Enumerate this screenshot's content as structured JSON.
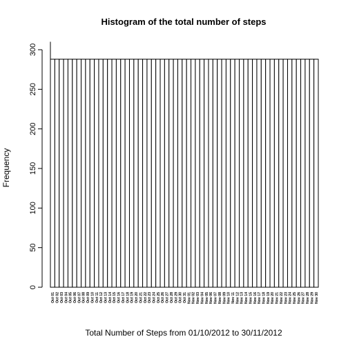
{
  "chart_data": {
    "type": "bar",
    "title": "Histogram of the total number of steps",
    "xlabel": "Total Number of Steps from 01/10/2012 to 30/11/2012",
    "ylabel": "Frequency",
    "ylim": [
      0,
      310
    ],
    "yticks": [
      0,
      50,
      100,
      150,
      200,
      250,
      300
    ],
    "grid": false,
    "categories": [
      "Oct 01",
      "Oct 02",
      "Oct 03",
      "Oct 04",
      "Oct 05",
      "Oct 06",
      "Oct 07",
      "Oct 08",
      "Oct 09",
      "Oct 10",
      "Oct 11",
      "Oct 12",
      "Oct 13",
      "Oct 14",
      "Oct 15",
      "Oct 16",
      "Oct 17",
      "Oct 18",
      "Oct 19",
      "Oct 20",
      "Oct 21",
      "Oct 22",
      "Oct 23",
      "Oct 24",
      "Oct 25",
      "Oct 26",
      "Oct 27",
      "Oct 28",
      "Oct 29",
      "Oct 30",
      "Oct 31",
      "Nov 01",
      "Nov 02",
      "Nov 03",
      "Nov 04",
      "Nov 05",
      "Nov 06",
      "Nov 07",
      "Nov 08",
      "Nov 09",
      "Nov 10",
      "Nov 11",
      "Nov 12",
      "Nov 13",
      "Nov 14",
      "Nov 15",
      "Nov 16",
      "Nov 17",
      "Nov 18",
      "Nov 19",
      "Nov 20",
      "Nov 21",
      "Nov 22",
      "Nov 23",
      "Nov 24",
      "Nov 25",
      "Nov 26",
      "Nov 27",
      "Nov 28",
      "Nov 29",
      "Nov 30"
    ],
    "values": [
      288,
      288,
      288,
      288,
      288,
      288,
      288,
      288,
      288,
      288,
      288,
      288,
      288,
      288,
      288,
      288,
      288,
      288,
      288,
      288,
      288,
      288,
      288,
      288,
      288,
      288,
      288,
      288,
      288,
      288,
      288,
      288,
      288,
      288,
      288,
      288,
      288,
      288,
      288,
      288,
      288,
      288,
      288,
      288,
      288,
      288,
      288,
      288,
      288,
      288,
      288,
      288,
      288,
      288,
      288,
      288,
      288,
      288,
      288,
      288,
      288
    ]
  }
}
